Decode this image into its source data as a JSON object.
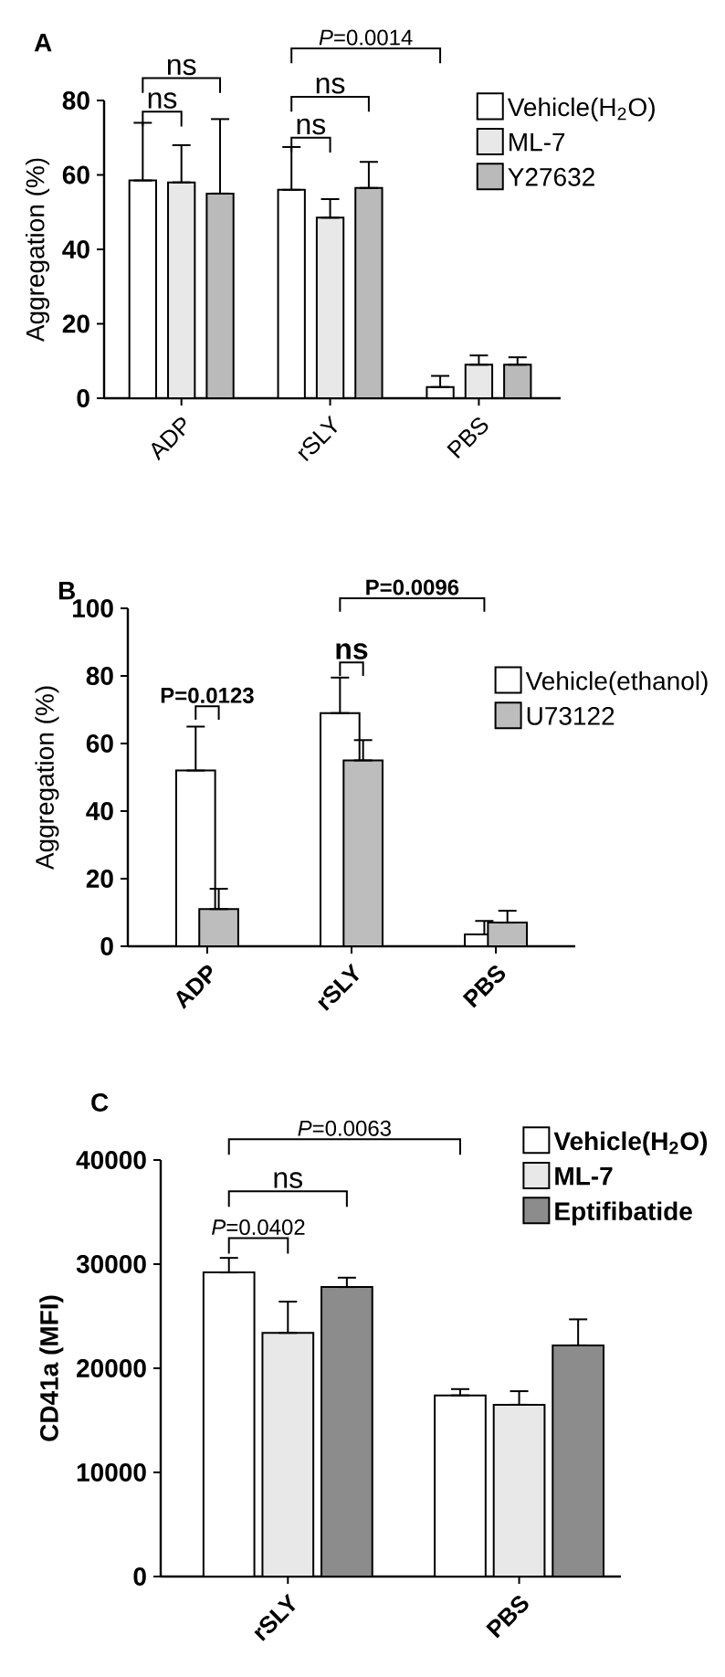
{
  "chart_data": [
    {
      "type": "bar",
      "title": "A",
      "ylabel": "Aggregation (%)",
      "categories": [
        "ADP",
        "rSLY",
        "PBS"
      ],
      "ylim": [
        0,
        80
      ],
      "yticks": [
        0,
        20,
        40,
        60,
        80
      ],
      "legend": "top right",
      "annotations": [
        "ns",
        "ns",
        "ns",
        "ns",
        "*P*=0.0014"
      ],
      "series": [
        {
          "name": "Vehicle(H$_{2}$O)",
          "color": "#ffffff",
          "values": [
            58.5,
            56,
            3
          ],
          "errors": [
            [
              58.5,
              74
            ],
            [
              56,
              67.5
            ],
            [
              3,
              6
            ]
          ]
        },
        {
          "name": "ML-7",
          "color": "#e8e8e8",
          "values": [
            58,
            48.5,
            9
          ],
          "errors": [
            [
              58,
              68
            ],
            [
              48.5,
              53.5
            ],
            [
              9,
              11.5
            ]
          ]
        },
        {
          "name": "Y27632",
          "color": "#bababa",
          "values": [
            55,
            56.5,
            9
          ],
          "errors": [
            [
              55,
              75
            ],
            [
              56.5,
              63.5
            ],
            [
              9,
              11
            ]
          ]
        }
      ]
    },
    {
      "type": "bar",
      "title": "B",
      "ylabel": "Aggregation (%)",
      "categories": [
        "ADP",
        "rSLY",
        "PBS"
      ],
      "ylim": [
        0,
        100
      ],
      "yticks": [
        0,
        20,
        40,
        60,
        80,
        100
      ],
      "legend": "top right",
      "annotations": [
        "**P=0.0123**",
        "**ns**",
        "**P=0.0096**"
      ],
      "series": [
        {
          "name": "Vehicle(ethanol)",
          "color": "#ffffff",
          "values": [
            52,
            69,
            3.5
          ],
          "errors": [
            [
              52,
              65
            ],
            [
              69,
              79.5
            ],
            [
              3.5,
              7.5
            ]
          ]
        },
        {
          "name": "U73122",
          "color": "#bdbdbd",
          "values": [
            11,
            55,
            7
          ],
          "errors": [
            [
              11,
              17
            ],
            [
              55,
              61
            ],
            [
              7,
              10.5
            ]
          ]
        }
      ]
    },
    {
      "type": "bar",
      "title": "C",
      "ylabel": "CD41a (MFI)",
      "categories": [
        "rSLY",
        "PBS"
      ],
      "ylim": [
        0,
        40000
      ],
      "yticks": [
        0,
        10000,
        20000,
        30000,
        40000
      ],
      "legend": "top right",
      "annotations": [
        "*P*=0.0402",
        "ns",
        "*P*=0.0063"
      ],
      "series": [
        {
          "name": "Vehicle(H$_{2}$O)",
          "color": "#ffffff",
          "values": [
            29200,
            17400
          ],
          "errors": [
            [
              29200,
              30600
            ],
            [
              17400,
              18000
            ]
          ]
        },
        {
          "name": "ML-7",
          "color": "#e8e8e8",
          "values": [
            23400,
            16500
          ],
          "errors": [
            [
              23400,
              26400
            ],
            [
              16500,
              17800
            ]
          ]
        },
        {
          "name": "Eptifibatide",
          "color": "#8c8c8c",
          "values": [
            27800,
            22200
          ],
          "errors": [
            [
              27800,
              28700
            ],
            [
              22200,
              24700
            ]
          ]
        }
      ]
    }
  ]
}
